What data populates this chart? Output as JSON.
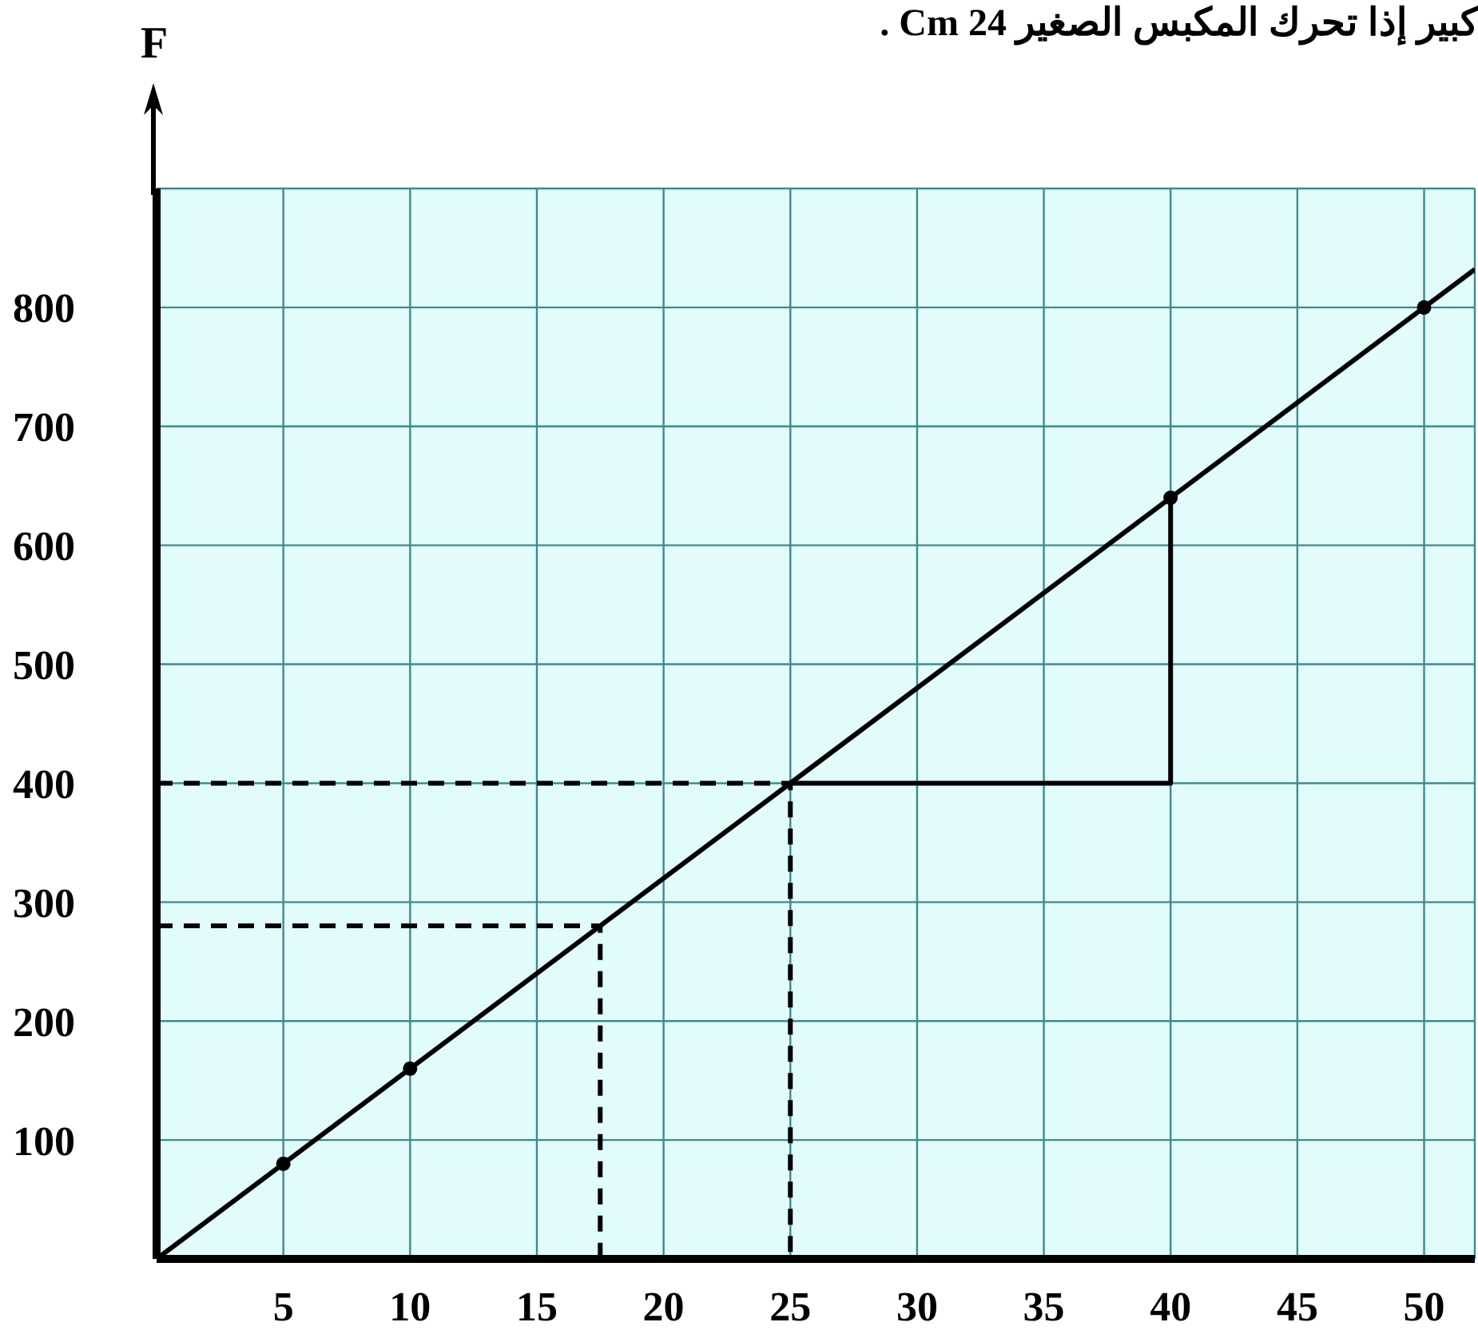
{
  "chart_data": {
    "type": "line",
    "title": "كبير إذا تحرك المكبس الصغير 24 Cm .",
    "ylabel": "F",
    "xlim": [
      0,
      52
    ],
    "xticks": [
      5,
      10,
      15,
      20,
      25,
      30,
      35,
      40,
      45,
      50
    ],
    "ylim": [
      0,
      900
    ],
    "yticks": [
      100,
      200,
      300,
      400,
      500,
      600,
      700,
      800
    ],
    "grid": true,
    "series": [
      {
        "type": "line",
        "color": "#000000",
        "x": [
          0,
          52
        ],
        "values": [
          0,
          832
        ],
        "marker": "none",
        "line_style": "solid"
      },
      {
        "type": "scatter",
        "color": "#000000",
        "x": [
          5,
          10,
          40,
          50
        ],
        "values": [
          80,
          160,
          640,
          800
        ],
        "marker": "circle"
      },
      {
        "type": "line",
        "color": "#000000",
        "x": [
          0,
          17.5,
          17.5
        ],
        "values": [
          280,
          280,
          0
        ],
        "marker": "none",
        "line_style": "dashed"
      },
      {
        "type": "line",
        "color": "#000000",
        "x": [
          0,
          25,
          25
        ],
        "values": [
          400,
          400,
          0
        ],
        "marker": "none",
        "line_style": "dashed"
      },
      {
        "type": "line",
        "color": "#000000",
        "x": [
          25,
          40,
          40
        ],
        "values": [
          400,
          400,
          640
        ],
        "marker": "none",
        "line_style": "solid"
      }
    ]
  }
}
